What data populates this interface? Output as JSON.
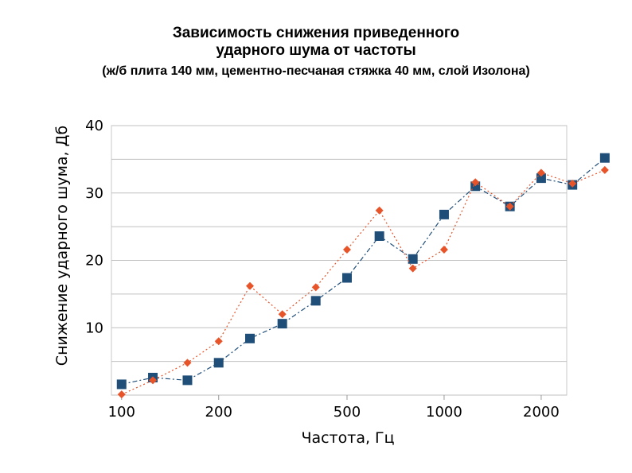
{
  "chart_data": {
    "type": "line",
    "title": "Зависимость снижения приведенного",
    "title_line2": "ударного шума от частоты",
    "subtitle": "(ж/б плита 140 мм, цементно-песчаная стяжка 40 мм, слой Изолона)",
    "xlabel": "Частота, Гц",
    "ylabel": "Снижение ударного шума, Дб",
    "x_scale": "log",
    "xlim": [
      93,
      2400
    ],
    "ylim": [
      0,
      40
    ],
    "grid": true,
    "x_ticks": [
      {
        "value": 100,
        "label": "100"
      },
      {
        "value": 200,
        "label": "200"
      },
      {
        "value": 500,
        "label": "500"
      },
      {
        "value": 1000,
        "label": "1000"
      },
      {
        "value": 2000,
        "label": "2000"
      }
    ],
    "y_ticks": [
      {
        "value": 10,
        "label": "10"
      },
      {
        "value": 20,
        "label": "20"
      },
      {
        "value": 30,
        "label": "30"
      },
      {
        "value": 40,
        "label": "40"
      }
    ],
    "x": [
      100,
      125,
      160,
      200,
      250,
      315,
      400,
      500,
      630,
      800,
      1000,
      1250,
      1600,
      2000,
      2500,
      3150
    ],
    "series": [
      {
        "color": "#1f4e79",
        "marker": "square",
        "line_style": "dash-dot",
        "values": [
          1.6,
          2.6,
          2.2,
          4.8,
          8.4,
          10.6,
          14.0,
          17.4,
          23.6,
          20.2,
          26.8,
          31.0,
          28.0,
          32.2,
          31.2,
          35.2
        ]
      },
      {
        "color": "#e8542a",
        "marker": "diamond",
        "line_style": "dotted",
        "values": [
          0.1,
          2.2,
          4.8,
          8.0,
          16.2,
          12.0,
          16.0,
          21.6,
          27.4,
          18.8,
          21.6,
          31.6,
          28.0,
          33.0,
          31.4,
          33.4
        ]
      }
    ]
  }
}
